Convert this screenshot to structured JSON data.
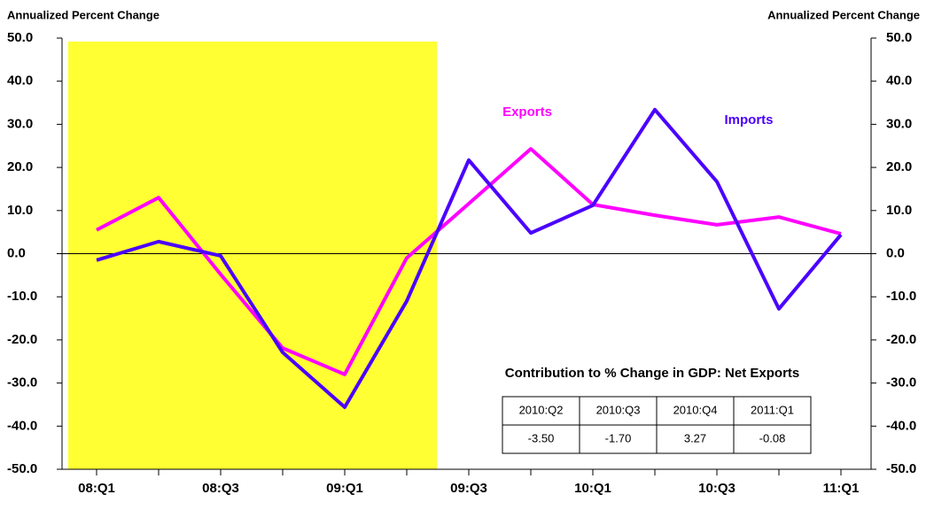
{
  "chart_data": {
    "type": "line",
    "ylabel": "Annualized Percent Change",
    "y2label": "Annualized Percent Change",
    "categories": [
      "08:Q1",
      null,
      "08:Q3",
      null,
      "09:Q1",
      null,
      "09:Q3",
      null,
      "10:Q1",
      null,
      "10:Q3",
      null,
      "11:Q1"
    ],
    "series": [
      {
        "name": "Exports",
        "color": "#ff00ff",
        "values": [
          5.5,
          13.0,
          -4.8,
          -21.9,
          -28.0,
          -1.0,
          11.6,
          24.3,
          11.4,
          8.9,
          6.7,
          8.5,
          4.6
        ]
      },
      {
        "name": "Imports",
        "color": "#4b00ff",
        "values": [
          -1.5,
          2.8,
          -0.5,
          -22.9,
          -35.6,
          -11.0,
          21.7,
          4.8,
          11.2,
          33.4,
          16.7,
          -12.8,
          4.4
        ]
      }
    ],
    "ylim": [
      -50,
      50
    ],
    "yticks": [
      {
        "value": -50,
        "label": "-50.0"
      },
      {
        "value": -40,
        "label": "-40.0"
      },
      {
        "value": -30,
        "label": "-30.0"
      },
      {
        "value": -20,
        "label": "-20.0"
      },
      {
        "value": -10,
        "label": "-10.0"
      },
      {
        "value": 0,
        "label": "0.0"
      },
      {
        "value": 10,
        "label": "10.0"
      },
      {
        "value": 20,
        "label": "20.0"
      },
      {
        "value": 30,
        "label": "30.0"
      },
      {
        "value": 40,
        "label": "40.0"
      },
      {
        "value": 50,
        "label": "50.0"
      }
    ],
    "y2lim": [
      -50,
      50
    ],
    "y2ticks": [
      {
        "value": -50,
        "label": "-50.0"
      },
      {
        "value": -40,
        "label": "-40.0"
      },
      {
        "value": -30,
        "label": "-30.0"
      },
      {
        "value": -20,
        "label": "-20.0"
      },
      {
        "value": -10,
        "label": "-10.0"
      },
      {
        "value": 0,
        "label": "0.0"
      },
      {
        "value": 10,
        "label": "10.0"
      },
      {
        "value": 20,
        "label": "20.0"
      },
      {
        "value": 30,
        "label": "30.0"
      },
      {
        "value": 40,
        "label": "40.0"
      },
      {
        "value": 50,
        "label": "50.0"
      }
    ],
    "grid": false
  },
  "table": {
    "title": "Contribution to % Change in GDP: Net Exports",
    "columns": [
      "2010:Q2",
      "2010:Q3",
      "2010:Q4",
      "2011:Q1"
    ],
    "values": [
      "-3.50",
      "-1.70",
      "3.27",
      "-0.08"
    ]
  }
}
